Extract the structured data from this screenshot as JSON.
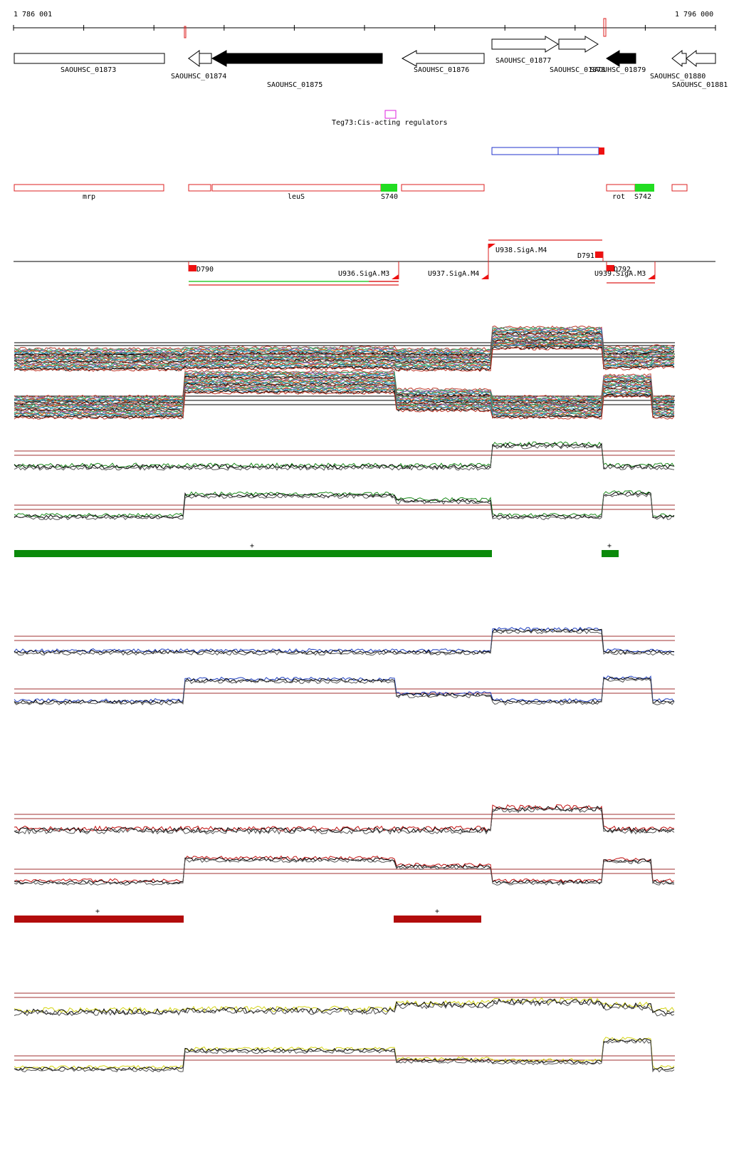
{
  "ruler": {
    "start_label": "1 786 001",
    "end_label": "1 796 000"
  },
  "genes": [
    {
      "label": "SAOUHSC_01873",
      "strand": "+",
      "fill": "white"
    },
    {
      "label": "SAOUHSC_01874",
      "strand": "-",
      "fill": "white"
    },
    {
      "label": "SAOUHSC_01875",
      "strand": "-",
      "fill": "black"
    },
    {
      "label": "SAOUHSC_01876",
      "strand": "-",
      "fill": "white"
    },
    {
      "label": "SAOUHSC_01877",
      "strand": "+",
      "fill": "white"
    },
    {
      "label": "SAOUHSC_01878",
      "strand": "+",
      "fill": "white"
    },
    {
      "label": "SAOUHSC_01879",
      "strand": "-",
      "fill": "black"
    },
    {
      "label": "SAOUHSC_01880",
      "strand": "-",
      "fill": "white"
    },
    {
      "label": "SAOUHSC_01881",
      "strand": "-",
      "fill": "white"
    }
  ],
  "regulator": {
    "label": "Teg73:Cis-acting regulators",
    "color": "#dd22dd"
  },
  "operons": [
    {
      "label": "mrp",
      "color": "#dd2222"
    },
    {
      "label": "leuS",
      "color": "#dd2222"
    },
    {
      "label": "S740",
      "color": "#22dd22"
    },
    {
      "label": "rot",
      "color": "#dd2222"
    },
    {
      "label": "S742",
      "color": "#22dd22"
    }
  ],
  "transcription_units": [
    {
      "label": "D790"
    },
    {
      "label": "U936.SigA.M3"
    },
    {
      "label": "U937.SigA.M4"
    },
    {
      "label": "U938.SigA.M4"
    },
    {
      "label": "D791"
    },
    {
      "label": "D792"
    },
    {
      "label": "U939.SigA.M3"
    }
  ],
  "expression_tracks": [
    {
      "name": "all-conditions",
      "colors": [
        "#c0392b",
        "#7f8c8d",
        "#27ae60",
        "#8e44ad",
        "#d35400",
        "#16a085",
        "#2980b9",
        "#a0522d",
        "#000000"
      ]
    },
    {
      "name": "green-condition",
      "color": "#1a8a1a",
      "segment_marks": [
        "+",
        "+"
      ]
    },
    {
      "name": "blue-condition",
      "color": "#1f3fbf"
    },
    {
      "name": "red-condition",
      "color": "#c01010",
      "segment_marks": [
        "+",
        "+"
      ]
    },
    {
      "name": "yellow-condition",
      "color": "#d4d414"
    }
  ],
  "colors": {
    "threshold": "#a03030",
    "strand_line": "#000000",
    "green_bar": "#0b8a0b",
    "red_bar": "#b20c0c"
  }
}
